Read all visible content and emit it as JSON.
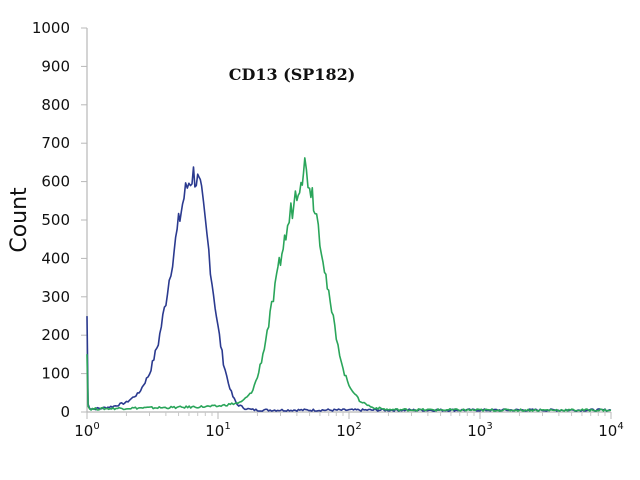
{
  "chart_data": {
    "type": "line",
    "title": "CD13 (SP182)",
    "xlabel": "",
    "ylabel": "Count",
    "x_scale": "log",
    "xlim": [
      1,
      10000
    ],
    "ylim": [
      0,
      1000
    ],
    "y_ticks": [
      0,
      100,
      200,
      300,
      400,
      500,
      600,
      700,
      800,
      900,
      1000
    ],
    "x_ticks": [
      {
        "value": 1,
        "base": "10",
        "exp": "0"
      },
      {
        "value": 10,
        "base": "10",
        "exp": "1"
      },
      {
        "value": 100,
        "base": "10",
        "exp": "2"
      },
      {
        "value": 1000,
        "base": "10",
        "exp": "3"
      },
      {
        "value": 10000,
        "base": "10",
        "exp": "4"
      }
    ],
    "grid": false,
    "legend": "none",
    "series": [
      {
        "color": "#2b3a8f",
        "x": [
          1.0,
          1.02,
          1.05,
          1.1,
          1.3,
          1.6,
          2.0,
          2.5,
          3.0,
          3.5,
          4.0,
          4.5,
          5.0,
          5.5,
          6.0,
          6.5,
          7.0,
          7.5,
          8.0,
          8.5,
          9.0,
          9.5,
          10.0,
          11.0,
          12.0,
          13.0,
          14.0,
          16.0,
          18.0,
          20.0,
          25.0,
          40.0,
          100.0,
          1000.0,
          10000.0
        ],
        "y": [
          250,
          20,
          10,
          8,
          10,
          15,
          25,
          50,
          100,
          180,
          290,
          400,
          490,
          560,
          600,
          620,
          600,
          560,
          490,
          420,
          340,
          280,
          220,
          130,
          75,
          40,
          20,
          10,
          6,
          5,
          5,
          5,
          5,
          5,
          5
        ]
      },
      {
        "color": "#2aa55a",
        "x": [
          1.0,
          1.02,
          1.05,
          1.1,
          2.0,
          5.0,
          10.0,
          15.0,
          18.0,
          20.0,
          22.0,
          25.0,
          28.0,
          30.0,
          33.0,
          36.0,
          40.0,
          43.0,
          46.0,
          50.0,
          55.0,
          60.0,
          65.0,
          70.0,
          80.0,
          90.0,
          100.0,
          120.0,
          150.0,
          200.0,
          1000.0,
          10000.0
        ],
        "y": [
          160,
          15,
          8,
          8,
          10,
          12,
          15,
          25,
          50,
          90,
          150,
          250,
          340,
          400,
          460,
          520,
          580,
          620,
          640,
          600,
          540,
          460,
          380,
          300,
          200,
          110,
          70,
          30,
          12,
          6,
          5,
          5
        ]
      }
    ]
  }
}
